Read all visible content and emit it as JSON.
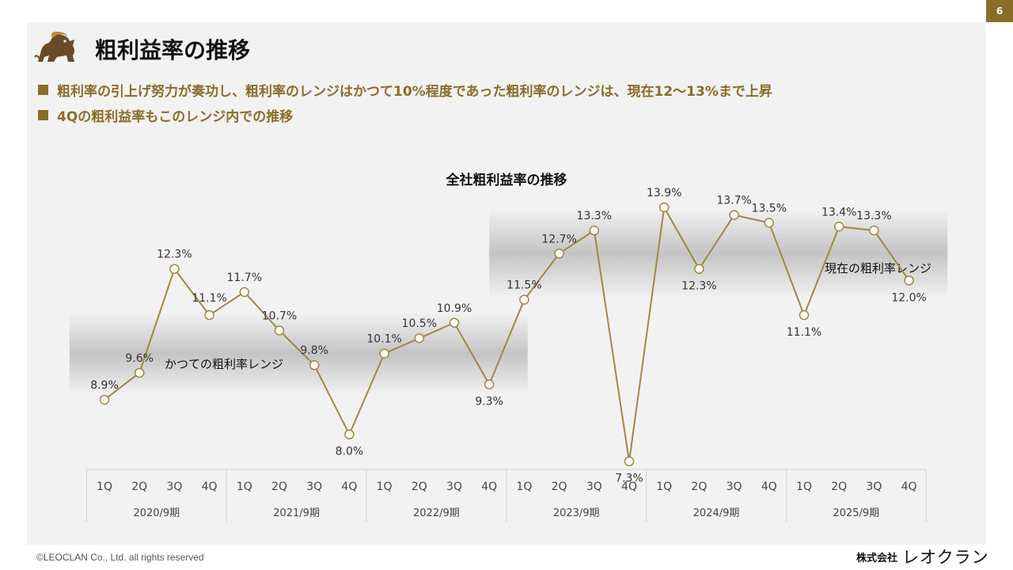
{
  "page_number": "6",
  "title": "粗利益率の推移",
  "bullets": [
    "粗利率の引上げ努力が奏功し、粗利率のレンジはかつて10%程度であった粗利率のレンジは、現在12〜13%まで上昇",
    "4Qの粗利益率もこのレンジ内での推移"
  ],
  "footer": {
    "copyright": "©LEOCLAN Co., Ltd. all rights reserved",
    "company_prefix": "株式会社",
    "company_name": "レオクラン"
  },
  "colors": {
    "accent": "#8b6d2a",
    "line": "#a08745",
    "band": "#c4c4c4"
  },
  "icons": {
    "logo": "lion-icon"
  },
  "chart_data": {
    "type": "line",
    "title": "全社粗利益率の推移",
    "ylim": [
      6.5,
      14.5
    ],
    "categories": [
      "1Q",
      "2Q",
      "3Q",
      "4Q",
      "1Q",
      "2Q",
      "3Q",
      "4Q",
      "1Q",
      "2Q",
      "3Q",
      "4Q",
      "1Q",
      "2Q",
      "3Q",
      "4Q",
      "1Q",
      "2Q",
      "3Q",
      "4Q",
      "1Q",
      "2Q",
      "3Q",
      "4Q"
    ],
    "groups": [
      "2020/9期",
      "2021/9期",
      "2022/9期",
      "2023/9期",
      "2024/9期",
      "2025/9期"
    ],
    "series": [
      {
        "values": [
          8.9,
          9.6,
          12.3,
          11.1,
          11.7,
          10.7,
          9.8,
          8.0,
          10.1,
          10.5,
          10.9,
          9.3,
          11.5,
          12.7,
          13.3,
          7.3,
          13.9,
          12.3,
          13.7,
          13.5,
          11.1,
          13.4,
          13.3,
          12.0
        ],
        "labels": [
          "8.9%",
          "9.6%",
          "12.3%",
          "11.1%",
          "11.7%",
          "10.7%",
          "9.8%",
          "8.0%",
          "10.1%",
          "10.5%",
          "10.9%",
          "9.3%",
          "11.5%",
          "12.7%",
          "13.3%",
          "7.3%",
          "13.9%",
          "12.3%",
          "13.7%",
          "13.5%",
          "11.1%",
          "13.4%",
          "13.3%",
          "12.0%"
        ]
      }
    ],
    "bands": [
      {
        "label": "かつての粗利率レンジ",
        "from": 9.6,
        "to": 10.6,
        "start_index": 0,
        "end_index": 11
      },
      {
        "label": "現在の粗利率レンジ",
        "from": 12.1,
        "to": 13.3,
        "start_index": 12,
        "end_index": 23
      }
    ]
  }
}
